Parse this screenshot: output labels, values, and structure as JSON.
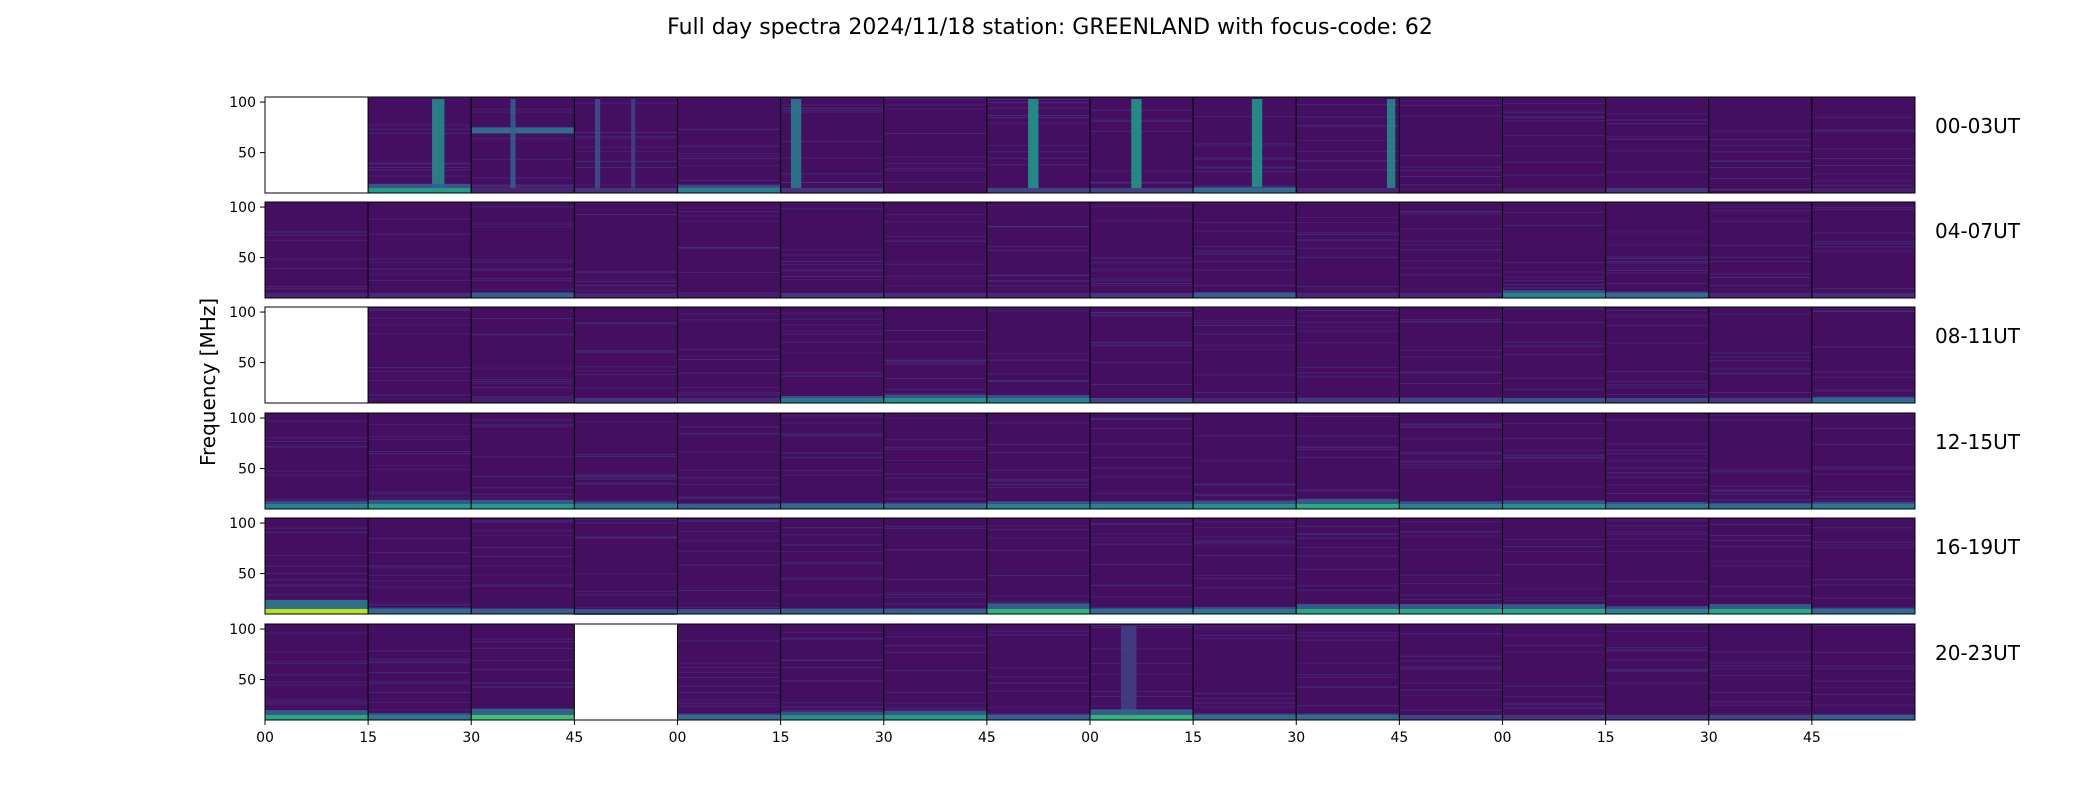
{
  "chart_data": {
    "type": "heatmap",
    "title": "Full day spectra 2024/11/18 station: GREENLAND with focus-code: 62",
    "ylabel": "Frequency [MHz]",
    "ylim": [
      10,
      105
    ],
    "yticks": [
      50,
      100
    ],
    "xticks": [
      "00",
      "15",
      "30",
      "45",
      "00",
      "15",
      "30",
      "45",
      "00",
      "15",
      "30",
      "45",
      "00",
      "15",
      "30",
      "45"
    ],
    "colormap": [
      "#440154",
      "#482878",
      "#3e4a89",
      "#31688e",
      "#26828e",
      "#1f9e89",
      "#35b779",
      "#6ece58",
      "#b5de2b",
      "#fde725"
    ],
    "background_color": "#471365",
    "rows": [
      {
        "label": "00-03UT",
        "panels": [
          {
            "missing": true
          },
          {
            "vbands": [
              {
                "pos": 0.62,
                "w": 0.12,
                "v": 0.5
              }
            ],
            "low": 0.55
          },
          {
            "hband": {
              "f": 72,
              "v": 0.35
            },
            "vbands": [
              {
                "pos": 0.38,
                "w": 0.05,
                "v": 0.3
              }
            ],
            "low": 0.1
          },
          {
            "vbands": [
              {
                "pos": 0.2,
                "w": 0.05,
                "v": 0.25
              },
              {
                "pos": 0.55,
                "w": 0.04,
                "v": 0.2
              }
            ],
            "low": 0.15
          },
          {
            "low": 0.45
          },
          {
            "vbands": [
              {
                "pos": 0.1,
                "w": 0.1,
                "v": 0.45
              }
            ],
            "low": 0.15
          },
          {
            "low": 0.05
          },
          {
            "vbands": [
              {
                "pos": 0.4,
                "w": 0.1,
                "v": 0.55
              }
            ],
            "low": 0.2
          },
          {
            "vbands": [
              {
                "pos": 0.4,
                "w": 0.1,
                "v": 0.55
              }
            ],
            "low": 0.2
          },
          {
            "vbands": [
              {
                "pos": 0.57,
                "w": 0.1,
                "v": 0.55
              }
            ],
            "low": 0.35
          },
          {
            "vbands": [
              {
                "pos": 0.88,
                "w": 0.08,
                "v": 0.5
              }
            ],
            "low": 0.1
          },
          {
            "low": 0.03
          },
          {
            "low": 0.08
          },
          {
            "low": 0.15
          },
          {
            "low": 0.05
          },
          {
            "low": 0.08
          }
        ]
      },
      {
        "label": "04-07UT",
        "panels": [
          {
            "low": 0.1
          },
          {
            "low": 0.12
          },
          {
            "low": 0.3
          },
          {
            "low": 0.1
          },
          {
            "low": 0.08
          },
          {
            "low": 0.15
          },
          {
            "low": 0.12
          },
          {
            "low": 0.1
          },
          {
            "low": 0.15
          },
          {
            "low": 0.3
          },
          {
            "low": 0.1
          },
          {
            "low": 0.1
          },
          {
            "low": 0.45
          },
          {
            "low": 0.35
          },
          {
            "low": 0.1
          },
          {
            "low": 0.12
          }
        ]
      },
      {
        "label": "08-11UT",
        "panels": [
          {
            "missing": true
          },
          {
            "low": 0.05
          },
          {
            "low": 0.08
          },
          {
            "low": 0.15
          },
          {
            "low": 0.12
          },
          {
            "low": 0.4
          },
          {
            "low": 0.5
          },
          {
            "low": 0.45
          },
          {
            "low": 0.2
          },
          {
            "low": 0.1
          },
          {
            "low": 0.15
          },
          {
            "low": 0.2
          },
          {
            "low": 0.25
          },
          {
            "low": 0.2
          },
          {
            "low": 0.15
          },
          {
            "low": 0.35
          }
        ]
      },
      {
        "label": "12-15UT",
        "panels": [
          {
            "low": 0.45
          },
          {
            "low": 0.55
          },
          {
            "low": 0.55
          },
          {
            "low": 0.4
          },
          {
            "low": 0.3
          },
          {
            "low": 0.35
          },
          {
            "low": 0.35
          },
          {
            "low": 0.45
          },
          {
            "low": 0.45
          },
          {
            "low": 0.5
          },
          {
            "low": 0.6
          },
          {
            "low": 0.45
          },
          {
            "low": 0.5
          },
          {
            "low": 0.4
          },
          {
            "low": 0.35
          },
          {
            "low": 0.4
          }
        ]
      },
      {
        "label": "16-19UT",
        "panels": [
          {
            "low": 0.9
          },
          {
            "low": 0.35
          },
          {
            "low": 0.3
          },
          {
            "low": 0.25
          },
          {
            "low": 0.25
          },
          {
            "low": 0.3
          },
          {
            "low": 0.3
          },
          {
            "low": 0.65
          },
          {
            "low": 0.35
          },
          {
            "low": 0.4
          },
          {
            "low": 0.6
          },
          {
            "low": 0.6
          },
          {
            "low": 0.6
          },
          {
            "low": 0.45
          },
          {
            "low": 0.6
          },
          {
            "low": 0.35
          }
        ]
      },
      {
        "label": "20-23UT",
        "panels": [
          {
            "low": 0.6
          },
          {
            "low": 0.4
          },
          {
            "low": 0.7
          },
          {
            "missing": true
          },
          {
            "low": 0.35
          },
          {
            "low": 0.5
          },
          {
            "low": 0.55
          },
          {
            "low": 0.3
          },
          {
            "low": 0.65,
            "vbands": [
              {
                "pos": 0.3,
                "w": 0.15,
                "v": 0.2
              }
            ]
          },
          {
            "low": 0.35
          },
          {
            "low": 0.35
          },
          {
            "low": 0.2
          },
          {
            "low": 0.15
          },
          {
            "low": 0.15
          },
          {
            "low": 0.2
          },
          {
            "low": 0.3
          }
        ]
      }
    ]
  }
}
